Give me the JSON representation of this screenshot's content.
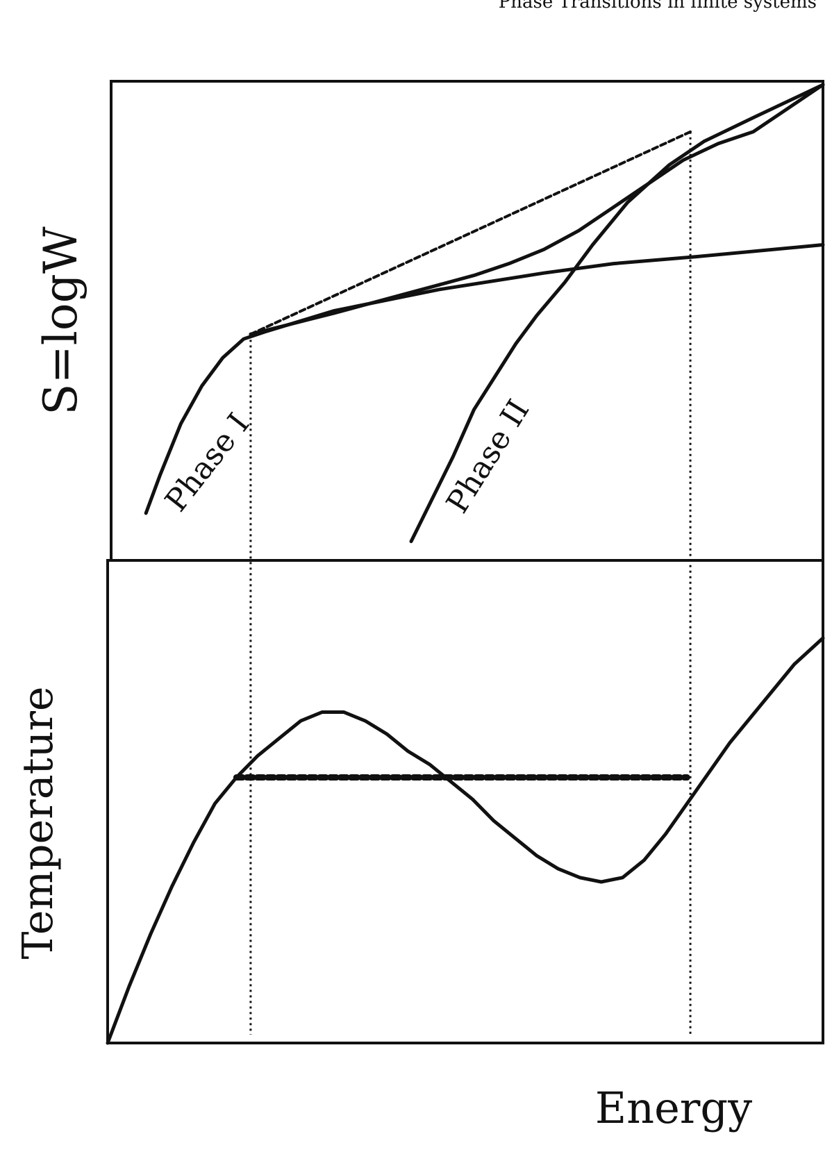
{
  "header": {
    "running_title": "Phase Transitions in finite systems"
  },
  "chart_data": [
    {
      "type": "line",
      "title": "",
      "ylabel": "S=logW",
      "xlabel": "",
      "xlim": [
        0,
        100
      ],
      "ylim": [
        0,
        100
      ],
      "grid": false,
      "annotations": [
        "Phase I",
        "Phase II"
      ],
      "series": [
        {
          "name": "Phase I",
          "x": [
            3,
            5,
            8,
            11,
            14,
            17,
            20,
            30,
            45,
            60,
            70,
            82,
            100
          ],
          "y": [
            9,
            17,
            28,
            36,
            42,
            46,
            47.5,
            52,
            56.5,
            60,
            62,
            63.5,
            66
          ]
        },
        {
          "name": "Phase II",
          "x": [
            41,
            44,
            47,
            50,
            53,
            56,
            59,
            63,
            67,
            72,
            78,
            83,
            90,
            100
          ],
          "y": [
            3,
            12,
            21,
            31,
            38,
            45,
            51,
            58,
            66,
            75,
            83,
            88,
            93,
            100
          ]
        },
        {
          "x": [
            18,
            22,
            26,
            30,
            35,
            40,
            45,
            50,
            55,
            60,
            65,
            70,
            75,
            80,
            85,
            90,
            95,
            100
          ],
          "y": [
            47,
            48.5,
            50,
            51.5,
            53.5,
            55.5,
            57.5,
            59.5,
            62,
            65,
            69,
            74,
            79,
            84,
            87.5,
            90,
            95,
            100
          ]
        },
        {
          "x": [
            18,
            81
          ],
          "y": [
            47,
            90
          ]
        }
      ]
    },
    {
      "type": "line",
      "title": "",
      "ylabel": "Temperature",
      "xlabel": "Energy",
      "xlim": [
        0,
        100
      ],
      "ylim": [
        0,
        100
      ],
      "grid": false,
      "series": [
        {
          "x": [
            0,
            3,
            6,
            9,
            12,
            15,
            18,
            21,
            24,
            27,
            30,
            33,
            36,
            39,
            42,
            45,
            48,
            51,
            54,
            57,
            60,
            63,
            66,
            69,
            72,
            75,
            78,
            81,
            84,
            87,
            90,
            93,
            96,
            100
          ],
          "y": [
            0,
            13,
            25,
            36,
            46,
            55,
            61,
            66,
            70,
            74,
            76,
            76,
            74,
            71,
            67,
            64,
            60,
            56,
            51,
            47,
            43,
            40,
            38,
            37,
            38,
            42,
            48,
            55,
            62,
            69,
            75,
            81,
            87,
            93
          ]
        },
        {
          "x": [
            18,
            81
          ],
          "y": [
            61,
            61
          ]
        }
      ]
    }
  ]
}
